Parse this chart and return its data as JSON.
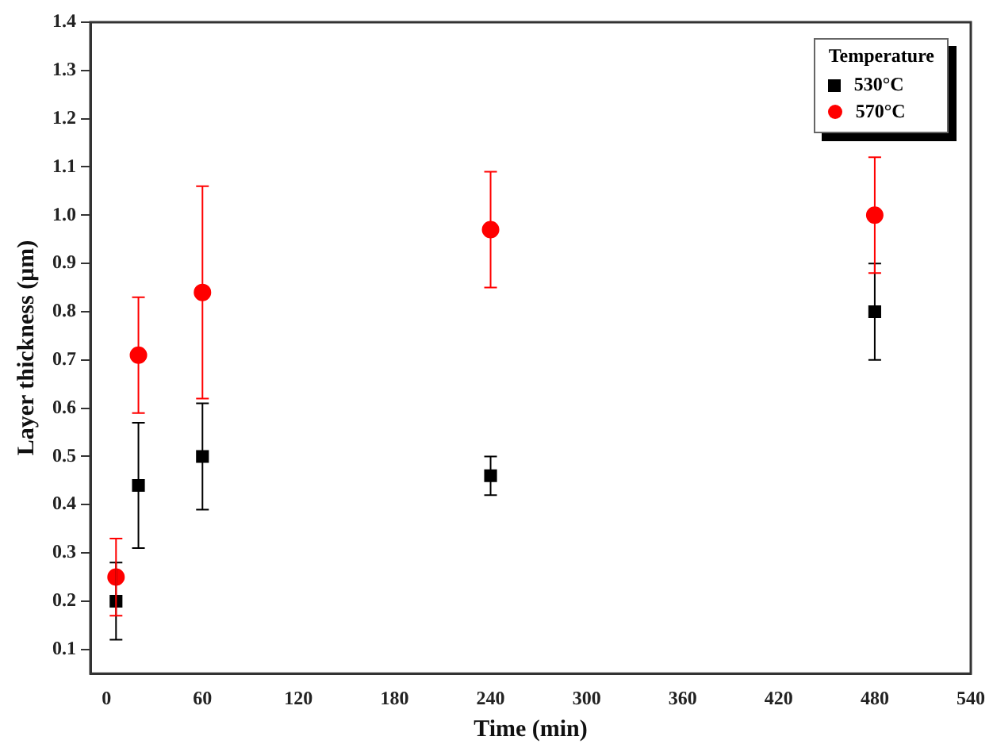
{
  "chart_data": {
    "type": "scatter",
    "xlabel": "Time (min)",
    "ylabel": "Layer thickness (μm)",
    "legend_title": "Temperature",
    "legend": "top right",
    "grid": false,
    "xlim": [
      -10,
      540
    ],
    "xticks": [
      0,
      60,
      120,
      180,
      240,
      300,
      360,
      420,
      480,
      540
    ],
    "ylim": [
      0.05,
      1.4
    ],
    "yticks": [
      0.1,
      0.2,
      0.3,
      0.4,
      0.5,
      0.6,
      0.7,
      0.8,
      0.9,
      {
        "value": 1,
        "label": "1.0"
      },
      1.1,
      1.2,
      1.3,
      1.4
    ],
    "series": [
      {
        "name": "530°C",
        "color": "#000000",
        "marker": "square",
        "x": [
          6,
          20,
          60,
          240,
          480
        ],
        "values": [
          0.2,
          0.44,
          0.5,
          0.46,
          0.8
        ],
        "errors": [
          [
            0.12,
            0.28
          ],
          [
            0.31,
            0.57
          ],
          [
            0.39,
            0.61
          ],
          [
            0.42,
            0.5
          ],
          [
            0.7,
            0.9
          ]
        ]
      },
      {
        "name": "570°C",
        "color": "#ff0000",
        "marker": "circle",
        "x": [
          6,
          20,
          60,
          240,
          480
        ],
        "values": [
          0.25,
          0.71,
          0.84,
          0.97,
          1.0
        ],
        "errors": [
          [
            0.17,
            0.33
          ],
          [
            0.59,
            0.83
          ],
          [
            0.62,
            1.06
          ],
          [
            0.85,
            1.09
          ],
          [
            0.88,
            1.12
          ]
        ]
      }
    ]
  }
}
